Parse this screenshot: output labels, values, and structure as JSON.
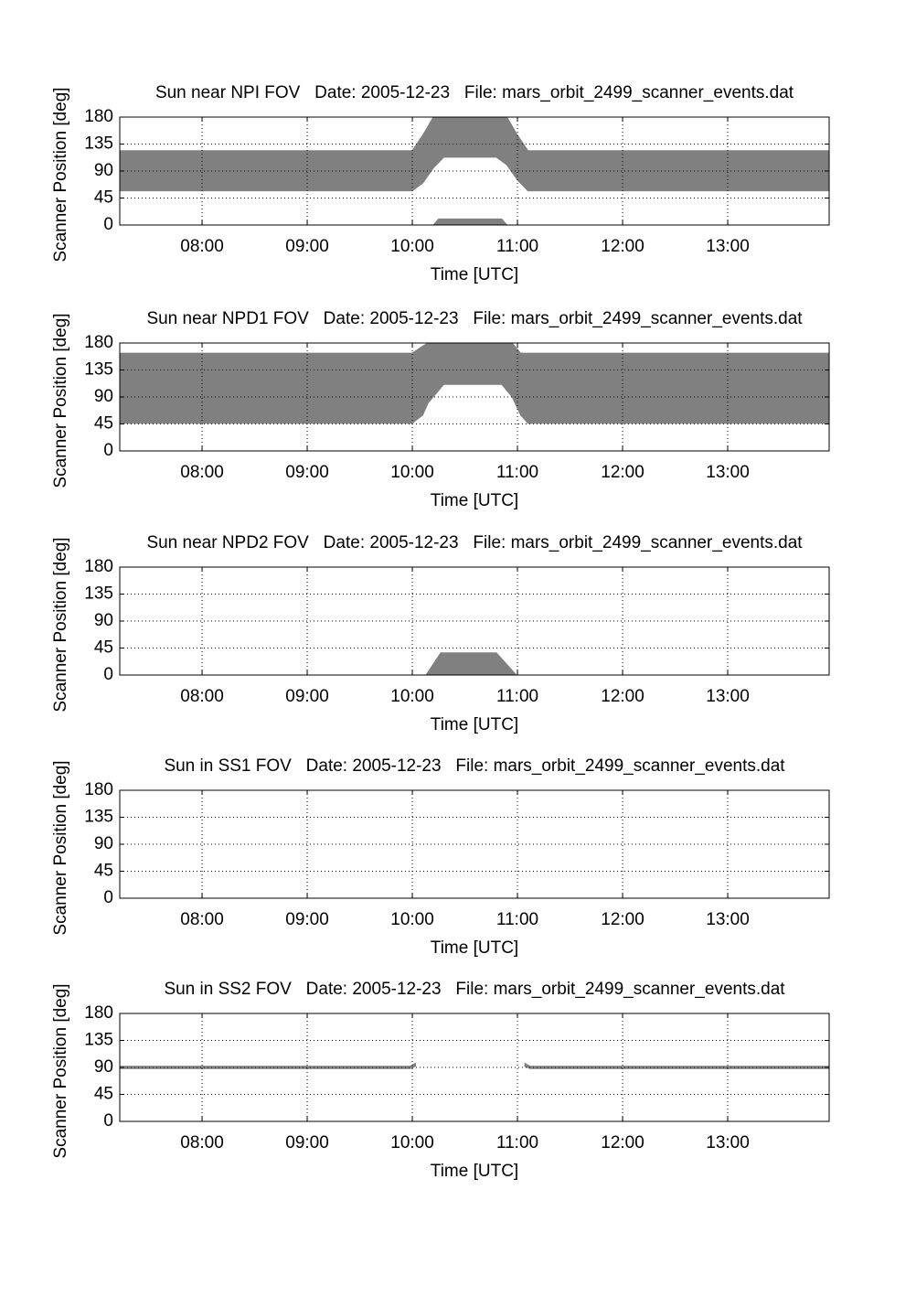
{
  "chart_data": [
    {
      "type": "area",
      "title": "Sun near NPI FOV   Date: 2005-12-23   File: mars_orbit_2499_scanner_events.dat",
      "xlabel": "Time [UTC]",
      "ylabel": "Scanner Position [deg]",
      "grid": true,
      "xlim": [
        7.217,
        13.965
      ],
      "xticks": [
        {
          "value": 8,
          "label": "08:00"
        },
        {
          "value": 9,
          "label": "09:00"
        },
        {
          "value": 10,
          "label": "10:00"
        },
        {
          "value": 11,
          "label": "11:00"
        },
        {
          "value": 12,
          "label": "12:00"
        },
        {
          "value": 13,
          "label": "13:00"
        }
      ],
      "ylim": [
        0,
        180
      ],
      "yticks": [
        0,
        45,
        90,
        135,
        180
      ],
      "series": [
        {
          "color": "#808080",
          "x": [
            7.217,
            10.0,
            10.1,
            10.2,
            10.3,
            10.8,
            10.9,
            11.0,
            11.1,
            13.965
          ],
          "lower": [
            57,
            57,
            70,
            95,
            113,
            113,
            100,
            75,
            57,
            57
          ],
          "upper": [
            124,
            124,
            150,
            180,
            180,
            180,
            180,
            150,
            124,
            124
          ]
        },
        {
          "color": "#808080",
          "x": [
            10.2,
            10.25,
            10.85,
            10.9
          ],
          "lower": [
            0,
            0,
            0,
            0
          ],
          "upper": [
            0,
            10,
            10,
            0
          ]
        }
      ]
    },
    {
      "type": "area",
      "title": "Sun near NPD1 FOV   Date: 2005-12-23   File: mars_orbit_2499_scanner_events.dat",
      "xlabel": "Time [UTC]",
      "ylabel": "Scanner Position [deg]",
      "grid": true,
      "xlim": [
        7.217,
        13.965
      ],
      "xticks": [
        {
          "value": 8,
          "label": "08:00"
        },
        {
          "value": 9,
          "label": "09:00"
        },
        {
          "value": 10,
          "label": "10:00"
        },
        {
          "value": 11,
          "label": "11:00"
        },
        {
          "value": 12,
          "label": "12:00"
        },
        {
          "value": 13,
          "label": "13:00"
        }
      ],
      "ylim": [
        0,
        180
      ],
      "yticks": [
        0,
        45,
        90,
        135,
        180
      ],
      "series": [
        {
          "color": "#808080",
          "x": [
            7.217,
            10.0,
            10.1,
            10.15,
            10.3,
            10.85,
            10.95,
            11.03,
            11.1,
            13.965
          ],
          "lower": [
            46,
            46,
            60,
            80,
            111,
            111,
            90,
            60,
            46,
            46
          ],
          "upper": [
            163,
            163,
            175,
            180,
            180,
            180,
            180,
            163,
            163,
            163
          ]
        }
      ]
    },
    {
      "type": "area",
      "title": "Sun near NPD2 FOV   Date: 2005-12-23   File: mars_orbit_2499_scanner_events.dat",
      "xlabel": "Time [UTC]",
      "ylabel": "Scanner Position [deg]",
      "grid": true,
      "xlim": [
        7.217,
        13.965
      ],
      "xticks": [
        {
          "value": 8,
          "label": "08:00"
        },
        {
          "value": 9,
          "label": "09:00"
        },
        {
          "value": 10,
          "label": "10:00"
        },
        {
          "value": 11,
          "label": "11:00"
        },
        {
          "value": 12,
          "label": "12:00"
        },
        {
          "value": 13,
          "label": "13:00"
        }
      ],
      "ylim": [
        0,
        180
      ],
      "yticks": [
        0,
        45,
        90,
        135,
        180
      ],
      "series": [
        {
          "color": "#808080",
          "x": [
            10.13,
            10.27,
            10.8,
            10.99
          ],
          "lower": [
            0,
            0,
            0,
            0
          ],
          "upper": [
            0,
            37,
            37,
            0
          ]
        }
      ]
    },
    {
      "type": "area",
      "title": "Sun in SS1 FOV   Date: 2005-12-23   File: mars_orbit_2499_scanner_events.dat",
      "xlabel": "Time [UTC]",
      "ylabel": "Scanner Position [deg]",
      "grid": true,
      "xlim": [
        7.217,
        13.965
      ],
      "xticks": [
        {
          "value": 8,
          "label": "08:00"
        },
        {
          "value": 9,
          "label": "09:00"
        },
        {
          "value": 10,
          "label": "10:00"
        },
        {
          "value": 11,
          "label": "11:00"
        },
        {
          "value": 12,
          "label": "12:00"
        },
        {
          "value": 13,
          "label": "13:00"
        }
      ],
      "ylim": [
        0,
        180
      ],
      "yticks": [
        0,
        45,
        90,
        135,
        180
      ],
      "series": []
    },
    {
      "type": "area",
      "title": "Sun in SS2 FOV   Date: 2005-12-23   File: mars_orbit_2499_scanner_events.dat",
      "xlabel": "Time [UTC]",
      "ylabel": "Scanner Position [deg]",
      "grid": true,
      "xlim": [
        7.217,
        13.965
      ],
      "xticks": [
        {
          "value": 8,
          "label": "08:00"
        },
        {
          "value": 9,
          "label": "09:00"
        },
        {
          "value": 10,
          "label": "10:00"
        },
        {
          "value": 11,
          "label": "11:00"
        },
        {
          "value": 12,
          "label": "12:00"
        },
        {
          "value": 13,
          "label": "13:00"
        }
      ],
      "ylim": [
        0,
        180
      ],
      "yticks": [
        0,
        45,
        90,
        135,
        180
      ],
      "series": [
        {
          "color": "#808080",
          "x": [
            7.217,
            9.98,
            10.03
          ],
          "lower": [
            88,
            88,
            92
          ],
          "upper": [
            92,
            92,
            97
          ]
        },
        {
          "color": "#808080",
          "x": [
            11.07,
            11.12,
            13.965
          ],
          "lower": [
            92,
            88,
            88
          ],
          "upper": [
            97,
            92,
            92
          ]
        }
      ]
    }
  ]
}
